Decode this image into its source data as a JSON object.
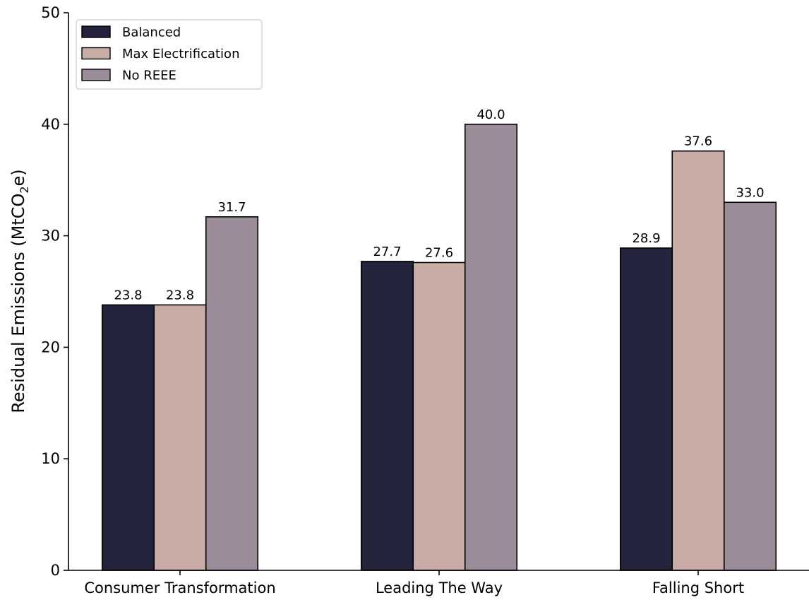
{
  "chart_data": {
    "type": "bar",
    "title": "",
    "xlabel": "",
    "ylabel": "Residual Emissions (MtCO",
    "ylabel_subscript": "2",
    "ylabel_suffix": "e)",
    "categories": [
      "Consumer Transformation",
      "Leading The Way",
      "Falling Short"
    ],
    "series": [
      {
        "name": "Balanced",
        "color": "#23233b",
        "values": [
          23.8,
          27.7,
          28.9
        ],
        "labels": [
          "23.8",
          "27.7",
          "28.9"
        ]
      },
      {
        "name": "Max Electrification",
        "color": "#c8aca6",
        "values": [
          23.8,
          27.6,
          37.6
        ],
        "labels": [
          "23.8",
          "27.6",
          "37.6"
        ]
      },
      {
        "name": "No REEE",
        "color": "#9b8c99",
        "values": [
          31.7,
          40.0,
          33.0
        ],
        "labels": [
          "31.7",
          "40.0",
          "33.0"
        ]
      }
    ],
    "ylim": [
      0,
      50
    ],
    "yticks": [
      "0",
      "10",
      "20",
      "30",
      "40",
      "50"
    ],
    "grid": false,
    "legend_position": "top-left"
  }
}
